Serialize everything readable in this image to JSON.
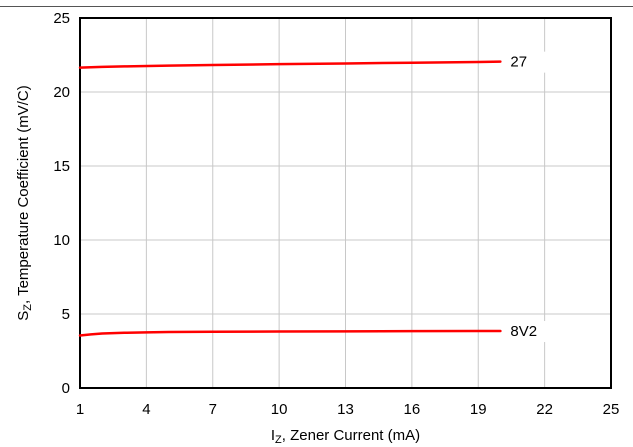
{
  "chart_data": {
    "type": "line",
    "xlabel": {
      "main": "I",
      "sub": "Z",
      "rest": ", Zener Current (mA)"
    },
    "ylabel": {
      "main": "S",
      "sub": "Z",
      "rest": ", Temperature Coefficient (mV/C)"
    },
    "xlim": [
      1,
      25
    ],
    "ylim": [
      0,
      25
    ],
    "xticks": [
      1,
      4,
      7,
      10,
      13,
      16,
      19,
      22,
      25
    ],
    "yticks": [
      0,
      5,
      10,
      15,
      20,
      25
    ],
    "grid": true,
    "series": [
      {
        "name": "27",
        "color": "#ff0000",
        "x": [
          1,
          2,
          3,
          5,
          7,
          10,
          13,
          16,
          19,
          20
        ],
        "y": [
          21.65,
          21.7,
          21.73,
          21.78,
          21.82,
          21.88,
          21.93,
          21.98,
          22.03,
          22.05
        ]
      },
      {
        "name": "8V2",
        "color": "#ff0000",
        "x": [
          1,
          1.5,
          2,
          3,
          4,
          5,
          7,
          10,
          13,
          16,
          19,
          20
        ],
        "y": [
          3.55,
          3.62,
          3.68,
          3.73,
          3.76,
          3.78,
          3.8,
          3.82,
          3.83,
          3.84,
          3.85,
          3.85
        ]
      }
    ]
  }
}
